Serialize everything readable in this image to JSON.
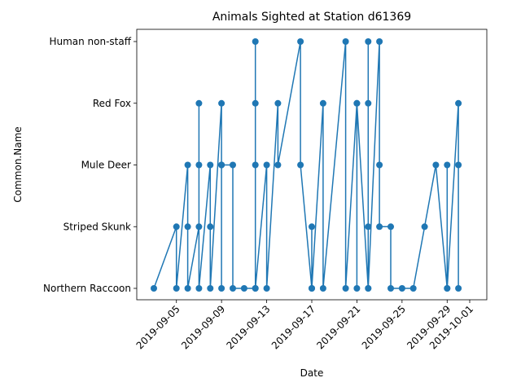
{
  "chart_data": {
    "type": "line",
    "title": "Animals Sighted at Station d61369",
    "xlabel": "Date",
    "ylabel": "Common.Name",
    "categories": [
      "Northern Raccoon",
      "Striped Skunk",
      "Mule Deer",
      "Red Fox",
      "Human non-staff"
    ],
    "x_ticks": [
      "2019-09-05",
      "2019-09-09",
      "2019-09-13",
      "2019-09-17",
      "2019-09-21",
      "2019-09-25",
      "2019-09-29",
      "2019-10-01"
    ],
    "xlim": [
      "2019-09-03",
      "2019-10-01"
    ],
    "grid": false,
    "color": "#1f77b4",
    "series": [
      {
        "points": [
          [
            "2019-09-03",
            "Northern Raccoon"
          ],
          [
            "2019-09-05",
            "Striped Skunk"
          ],
          [
            "2019-09-05",
            "Northern Raccoon"
          ],
          [
            "2019-09-06",
            "Mule Deer"
          ],
          [
            "2019-09-06",
            "Striped Skunk"
          ],
          [
            "2019-09-06",
            "Northern Raccoon"
          ],
          [
            "2019-09-07",
            "Striped Skunk"
          ],
          [
            "2019-09-07",
            "Red Fox"
          ],
          [
            "2019-09-07",
            "Mule Deer"
          ],
          [
            "2019-09-07",
            "Northern Raccoon"
          ],
          [
            "2019-09-08",
            "Mule Deer"
          ],
          [
            "2019-09-08",
            "Striped Skunk"
          ],
          [
            "2019-09-08",
            "Northern Raccoon"
          ],
          [
            "2019-09-09",
            "Red Fox"
          ],
          [
            "2019-09-09",
            "Mule Deer"
          ],
          [
            "2019-09-09",
            "Northern Raccoon"
          ],
          [
            "2019-09-09",
            "Mule Deer"
          ],
          [
            "2019-09-10",
            "Mule Deer"
          ],
          [
            "2019-09-10",
            "Northern Raccoon"
          ],
          [
            "2019-09-11",
            "Northern Raccoon"
          ],
          [
            "2019-09-12",
            "Northern Raccoon"
          ],
          [
            "2019-09-12",
            "Human non-staff"
          ],
          [
            "2019-09-12",
            "Red Fox"
          ],
          [
            "2019-09-12",
            "Mule Deer"
          ],
          [
            "2019-09-12",
            "Northern Raccoon"
          ],
          [
            "2019-09-13",
            "Mule Deer"
          ],
          [
            "2019-09-13",
            "Northern Raccoon"
          ],
          [
            "2019-09-14",
            "Red Fox"
          ],
          [
            "2019-09-14",
            "Mule Deer"
          ],
          [
            "2019-09-16",
            "Human non-staff"
          ],
          [
            "2019-09-16",
            "Mule Deer"
          ],
          [
            "2019-09-17",
            "Northern Raccoon"
          ],
          [
            "2019-09-17",
            "Striped Skunk"
          ],
          [
            "2019-09-17",
            "Northern Raccoon"
          ],
          [
            "2019-09-18",
            "Red Fox"
          ],
          [
            "2019-09-18",
            "Northern Raccoon"
          ],
          [
            "2019-09-20",
            "Human non-staff"
          ],
          [
            "2019-09-20",
            "Northern Raccoon"
          ],
          [
            "2019-09-21",
            "Red Fox"
          ],
          [
            "2019-09-21",
            "Northern Raccoon"
          ],
          [
            "2019-09-21",
            "Red Fox"
          ],
          [
            "2019-09-22",
            "Northern Raccoon"
          ],
          [
            "2019-09-22",
            "Human non-staff"
          ],
          [
            "2019-09-22",
            "Red Fox"
          ],
          [
            "2019-09-22",
            "Striped Skunk"
          ],
          [
            "2019-09-22",
            "Northern Raccoon"
          ],
          [
            "2019-09-23",
            "Human non-staff"
          ],
          [
            "2019-09-23",
            "Mule Deer"
          ],
          [
            "2019-09-23",
            "Striped Skunk"
          ],
          [
            "2019-09-24",
            "Striped Skunk"
          ],
          [
            "2019-09-24",
            "Northern Raccoon"
          ],
          [
            "2019-09-25",
            "Northern Raccoon"
          ],
          [
            "2019-09-26",
            "Northern Raccoon"
          ],
          [
            "2019-09-27",
            "Striped Skunk"
          ],
          [
            "2019-09-28",
            "Mule Deer"
          ],
          [
            "2019-09-29",
            "Northern Raccoon"
          ],
          [
            "2019-09-29",
            "Mule Deer"
          ],
          [
            "2019-09-29",
            "Northern Raccoon"
          ],
          [
            "2019-09-30",
            "Red Fox"
          ],
          [
            "2019-09-30",
            "Northern Raccoon"
          ],
          [
            "2019-09-30",
            "Mule Deer"
          ]
        ]
      }
    ]
  }
}
